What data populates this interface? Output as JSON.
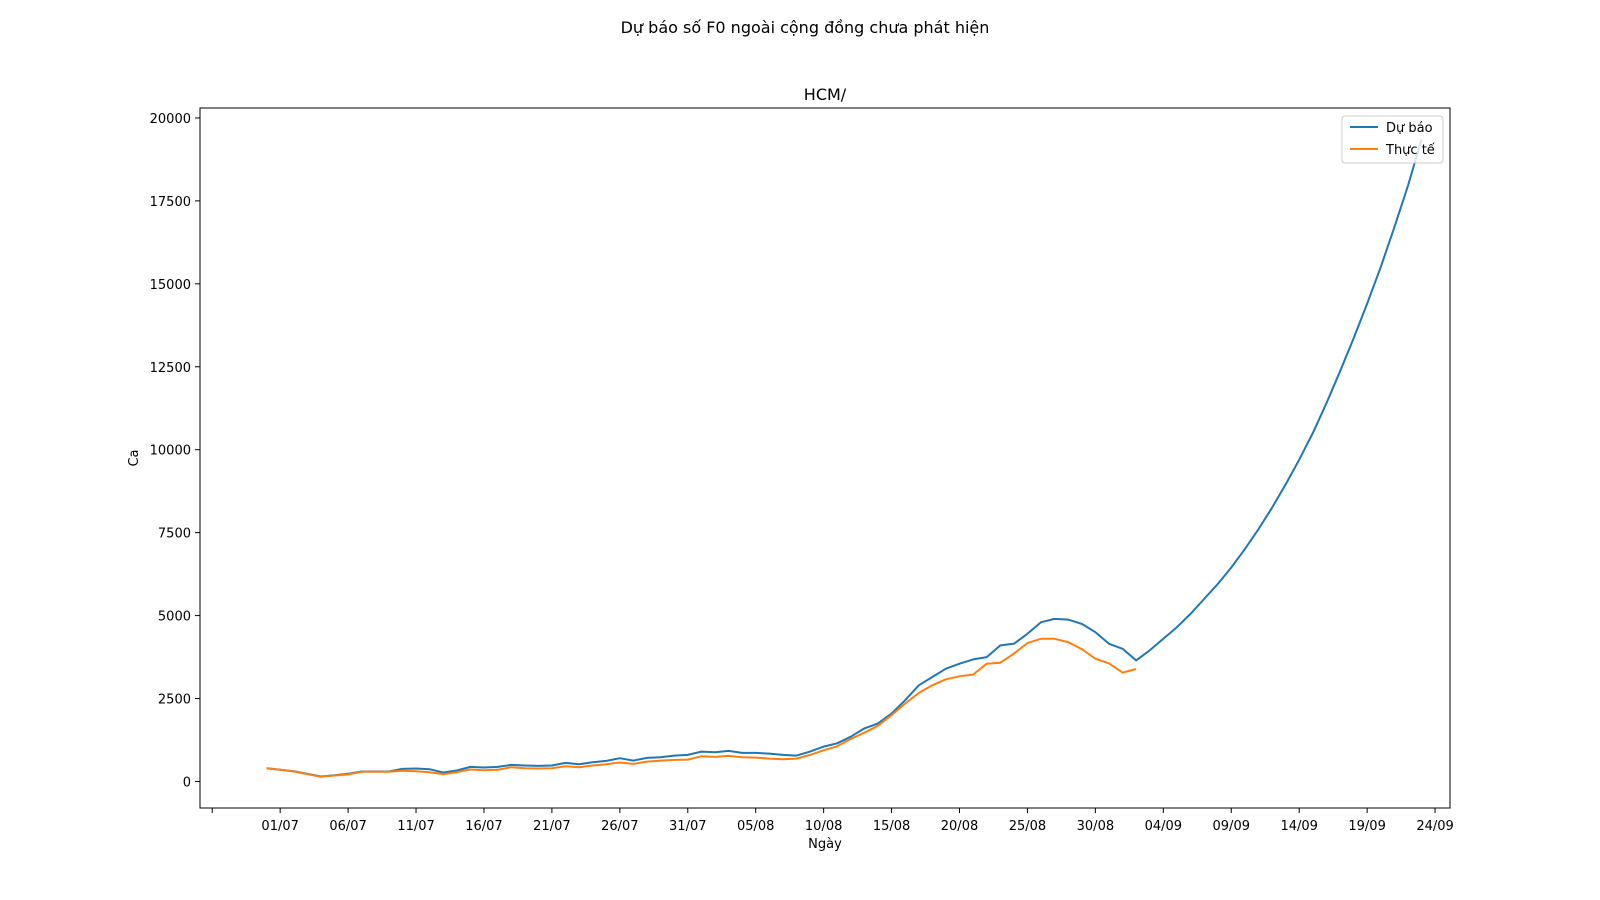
{
  "figure": {
    "suptitle": "Dự báo số F0 ngoài cộng đồng chưa phát hiện"
  },
  "chart_data": {
    "type": "line",
    "title": "HCM/",
    "xlabel": "Ngày",
    "ylabel": "Ca",
    "x_start": "2021-06-27",
    "x_tick_labels": [
      "",
      "01/07",
      "06/07",
      "11/07",
      "16/07",
      "21/07",
      "26/07",
      "31/07",
      "05/08",
      "10/08",
      "15/08",
      "20/08",
      "25/08",
      "30/08",
      "04/09",
      "09/09",
      "14/09",
      "19/09",
      "24/09"
    ],
    "y_ticks": [
      0,
      2500,
      5000,
      7500,
      10000,
      12500,
      15000,
      17500,
      20000
    ],
    "xlim": [
      -4.9,
      87.1
    ],
    "ylim": [
      -800,
      20300
    ],
    "grid": false,
    "legend_position": "top-right",
    "series": [
      {
        "name": "Dự báo",
        "color": "#1f77b4",
        "values": [
          400,
          350,
          310,
          230,
          150,
          190,
          230,
          300,
          300,
          300,
          380,
          390,
          370,
          270,
          330,
          440,
          420,
          440,
          500,
          480,
          470,
          480,
          560,
          520,
          580,
          620,
          700,
          630,
          710,
          730,
          780,
          800,
          900,
          880,
          920,
          860,
          860,
          840,
          800,
          780,
          900,
          1050,
          1150,
          1350,
          1600,
          1750,
          2050,
          2450,
          2900,
          3150,
          3400,
          3550,
          3680,
          3750,
          4100,
          4150,
          4450,
          4800,
          4900,
          4880,
          4750,
          4500,
          4150,
          4000,
          3650,
          3950,
          4300,
          4650,
          5050,
          5500,
          5950,
          6450,
          7000,
          7600,
          8250,
          8950,
          9700,
          10500,
          11400,
          12350,
          13350,
          14400,
          15500,
          16700,
          17950,
          19350
        ]
      },
      {
        "name": "Thực tế",
        "color": "#ff7f0e",
        "values": [
          400,
          350,
          300,
          220,
          140,
          180,
          210,
          290,
          290,
          290,
          320,
          310,
          280,
          220,
          280,
          360,
          340,
          350,
          430,
          400,
          390,
          400,
          460,
          430,
          480,
          520,
          570,
          530,
          600,
          630,
          650,
          660,
          760,
          740,
          770,
          730,
          720,
          690,
          670,
          690,
          800,
          940,
          1060,
          1280,
          1470,
          1680,
          2000,
          2350,
          2670,
          2900,
          3080,
          3170,
          3220,
          3550,
          3580,
          3850,
          4170,
          4300,
          4300,
          4200,
          3990,
          3700,
          3560,
          3280,
          3390
        ]
      }
    ]
  }
}
